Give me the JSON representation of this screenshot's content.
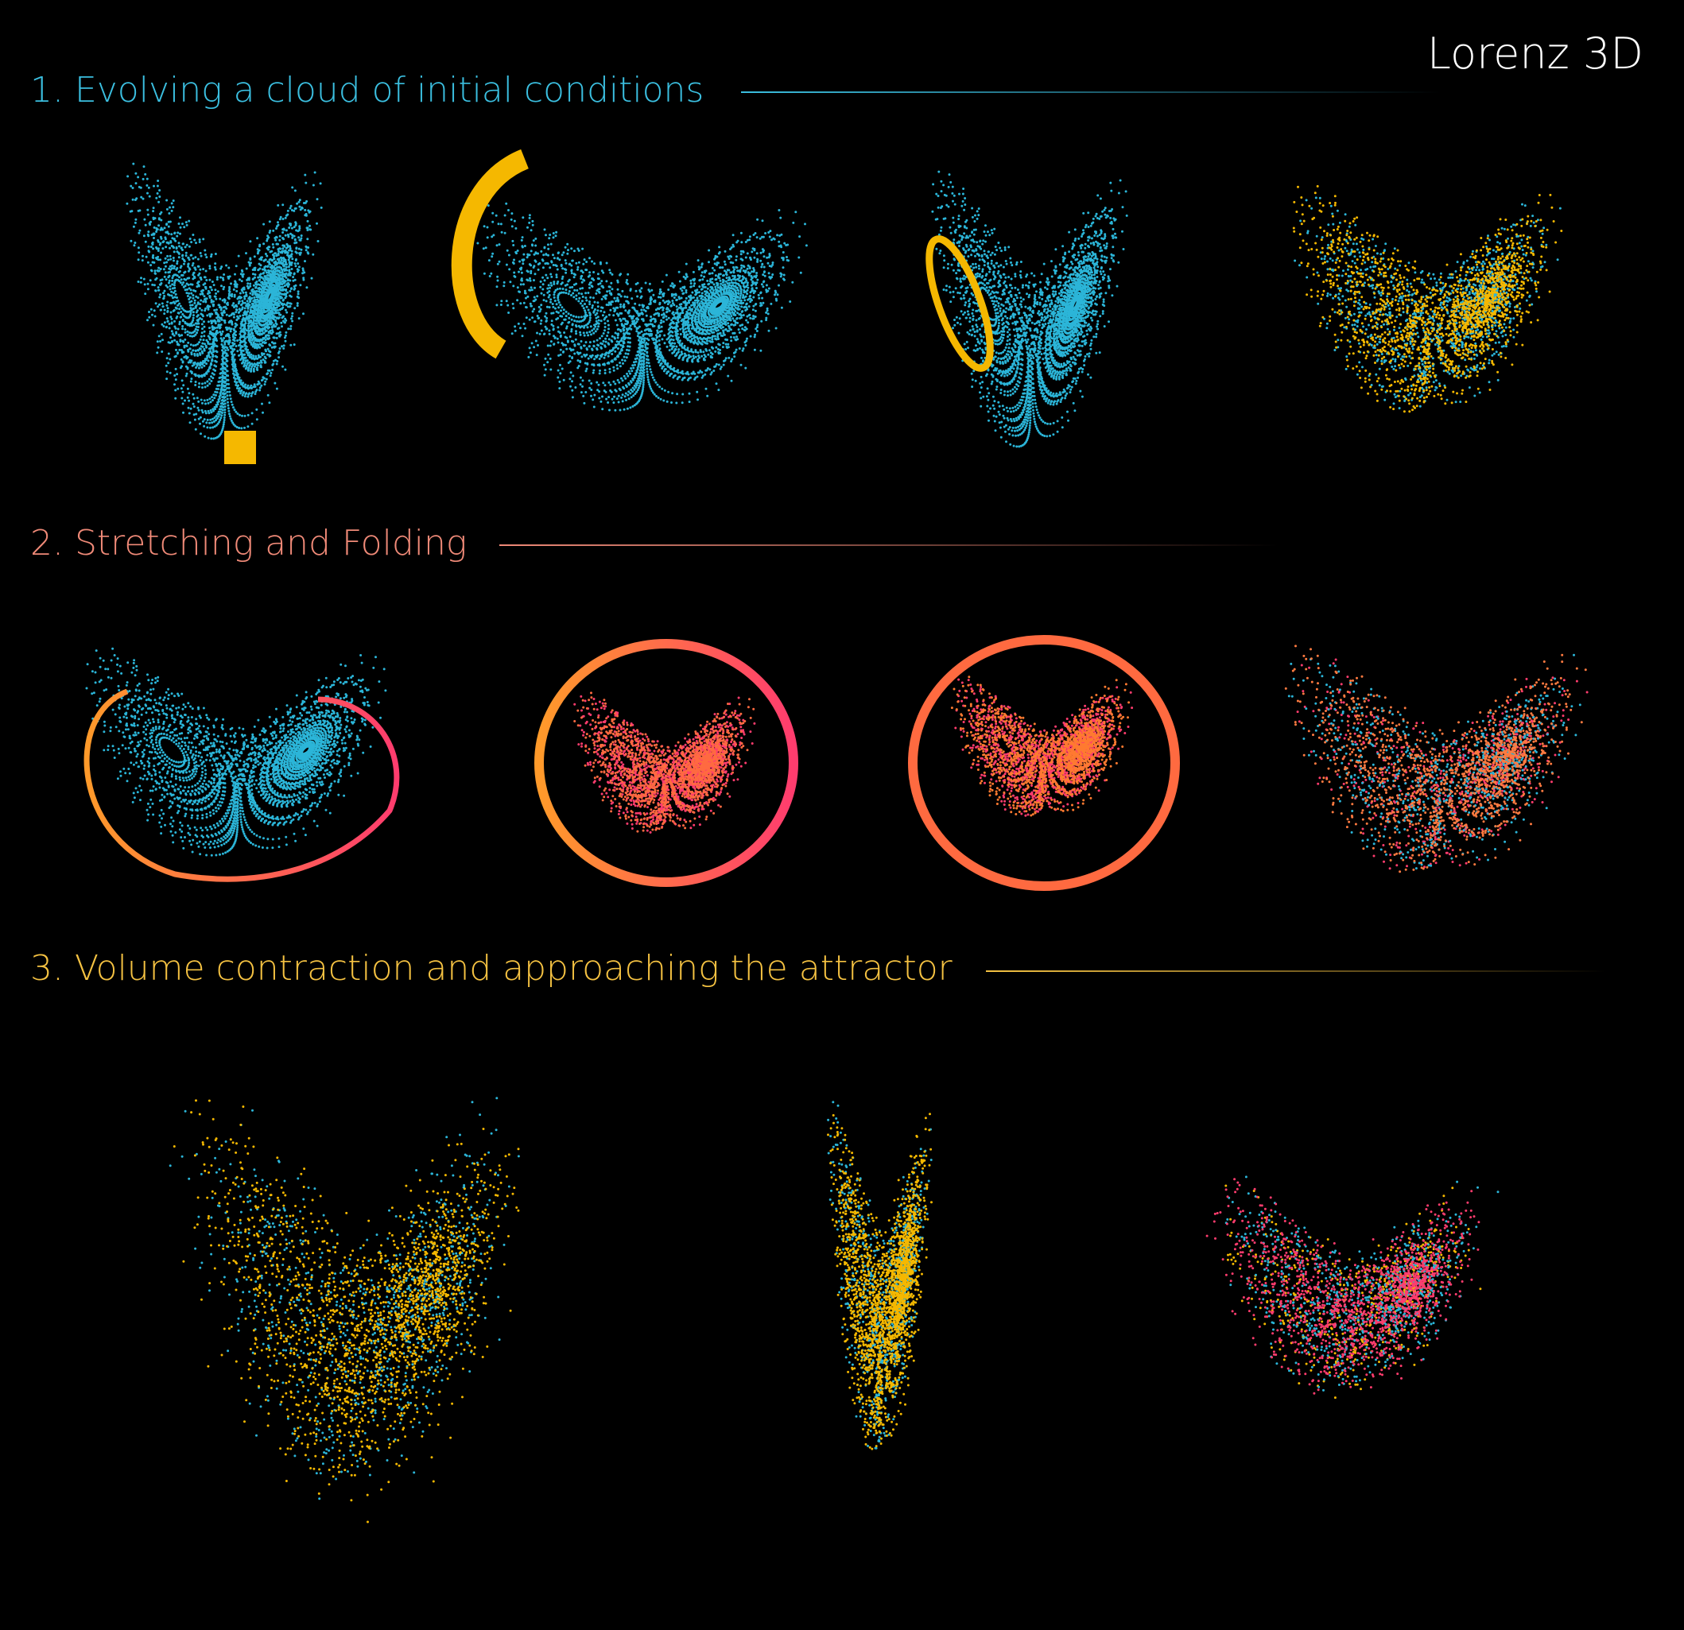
{
  "title": "Lorenz 3D",
  "sections": [
    {
      "heading": "1. Evolving a cloud of initial conditions"
    },
    {
      "heading": "2. Stretching and Folding"
    },
    {
      "heading": "3. Volume contraction and approaching the attractor"
    }
  ]
}
